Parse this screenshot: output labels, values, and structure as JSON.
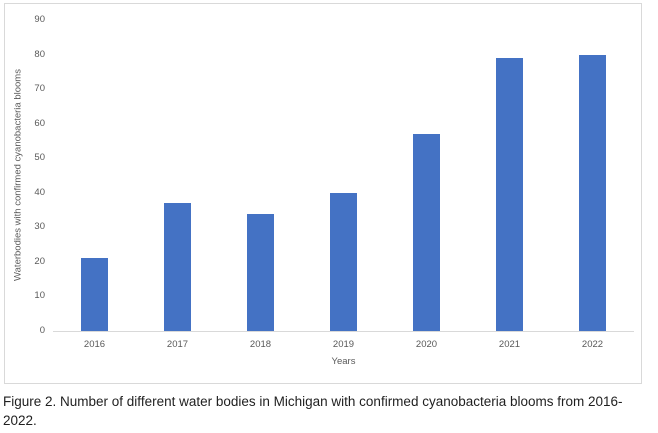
{
  "figure": {
    "caption": "Figure 2. Number of different water bodies in Michigan with confirmed cyanobacteria blooms from 2016-2022."
  },
  "chart_data": {
    "type": "bar",
    "categories": [
      "2016",
      "2017",
      "2018",
      "2019",
      "2020",
      "2021",
      "2022"
    ],
    "values": [
      21,
      37,
      34,
      40,
      57,
      79,
      80
    ],
    "title": "",
    "xlabel": "Years",
    "ylabel": "Waterbodies with confirmed cyanobacteria blooms",
    "ylim": [
      0,
      90
    ],
    "yticks": [
      0,
      10,
      20,
      30,
      40,
      50,
      60,
      70,
      80,
      90
    ],
    "grid": false,
    "legend": "none",
    "bar_color": "#4472C4",
    "axis_text_color": "#595959",
    "axis_line_color": "#D9D9D9"
  }
}
